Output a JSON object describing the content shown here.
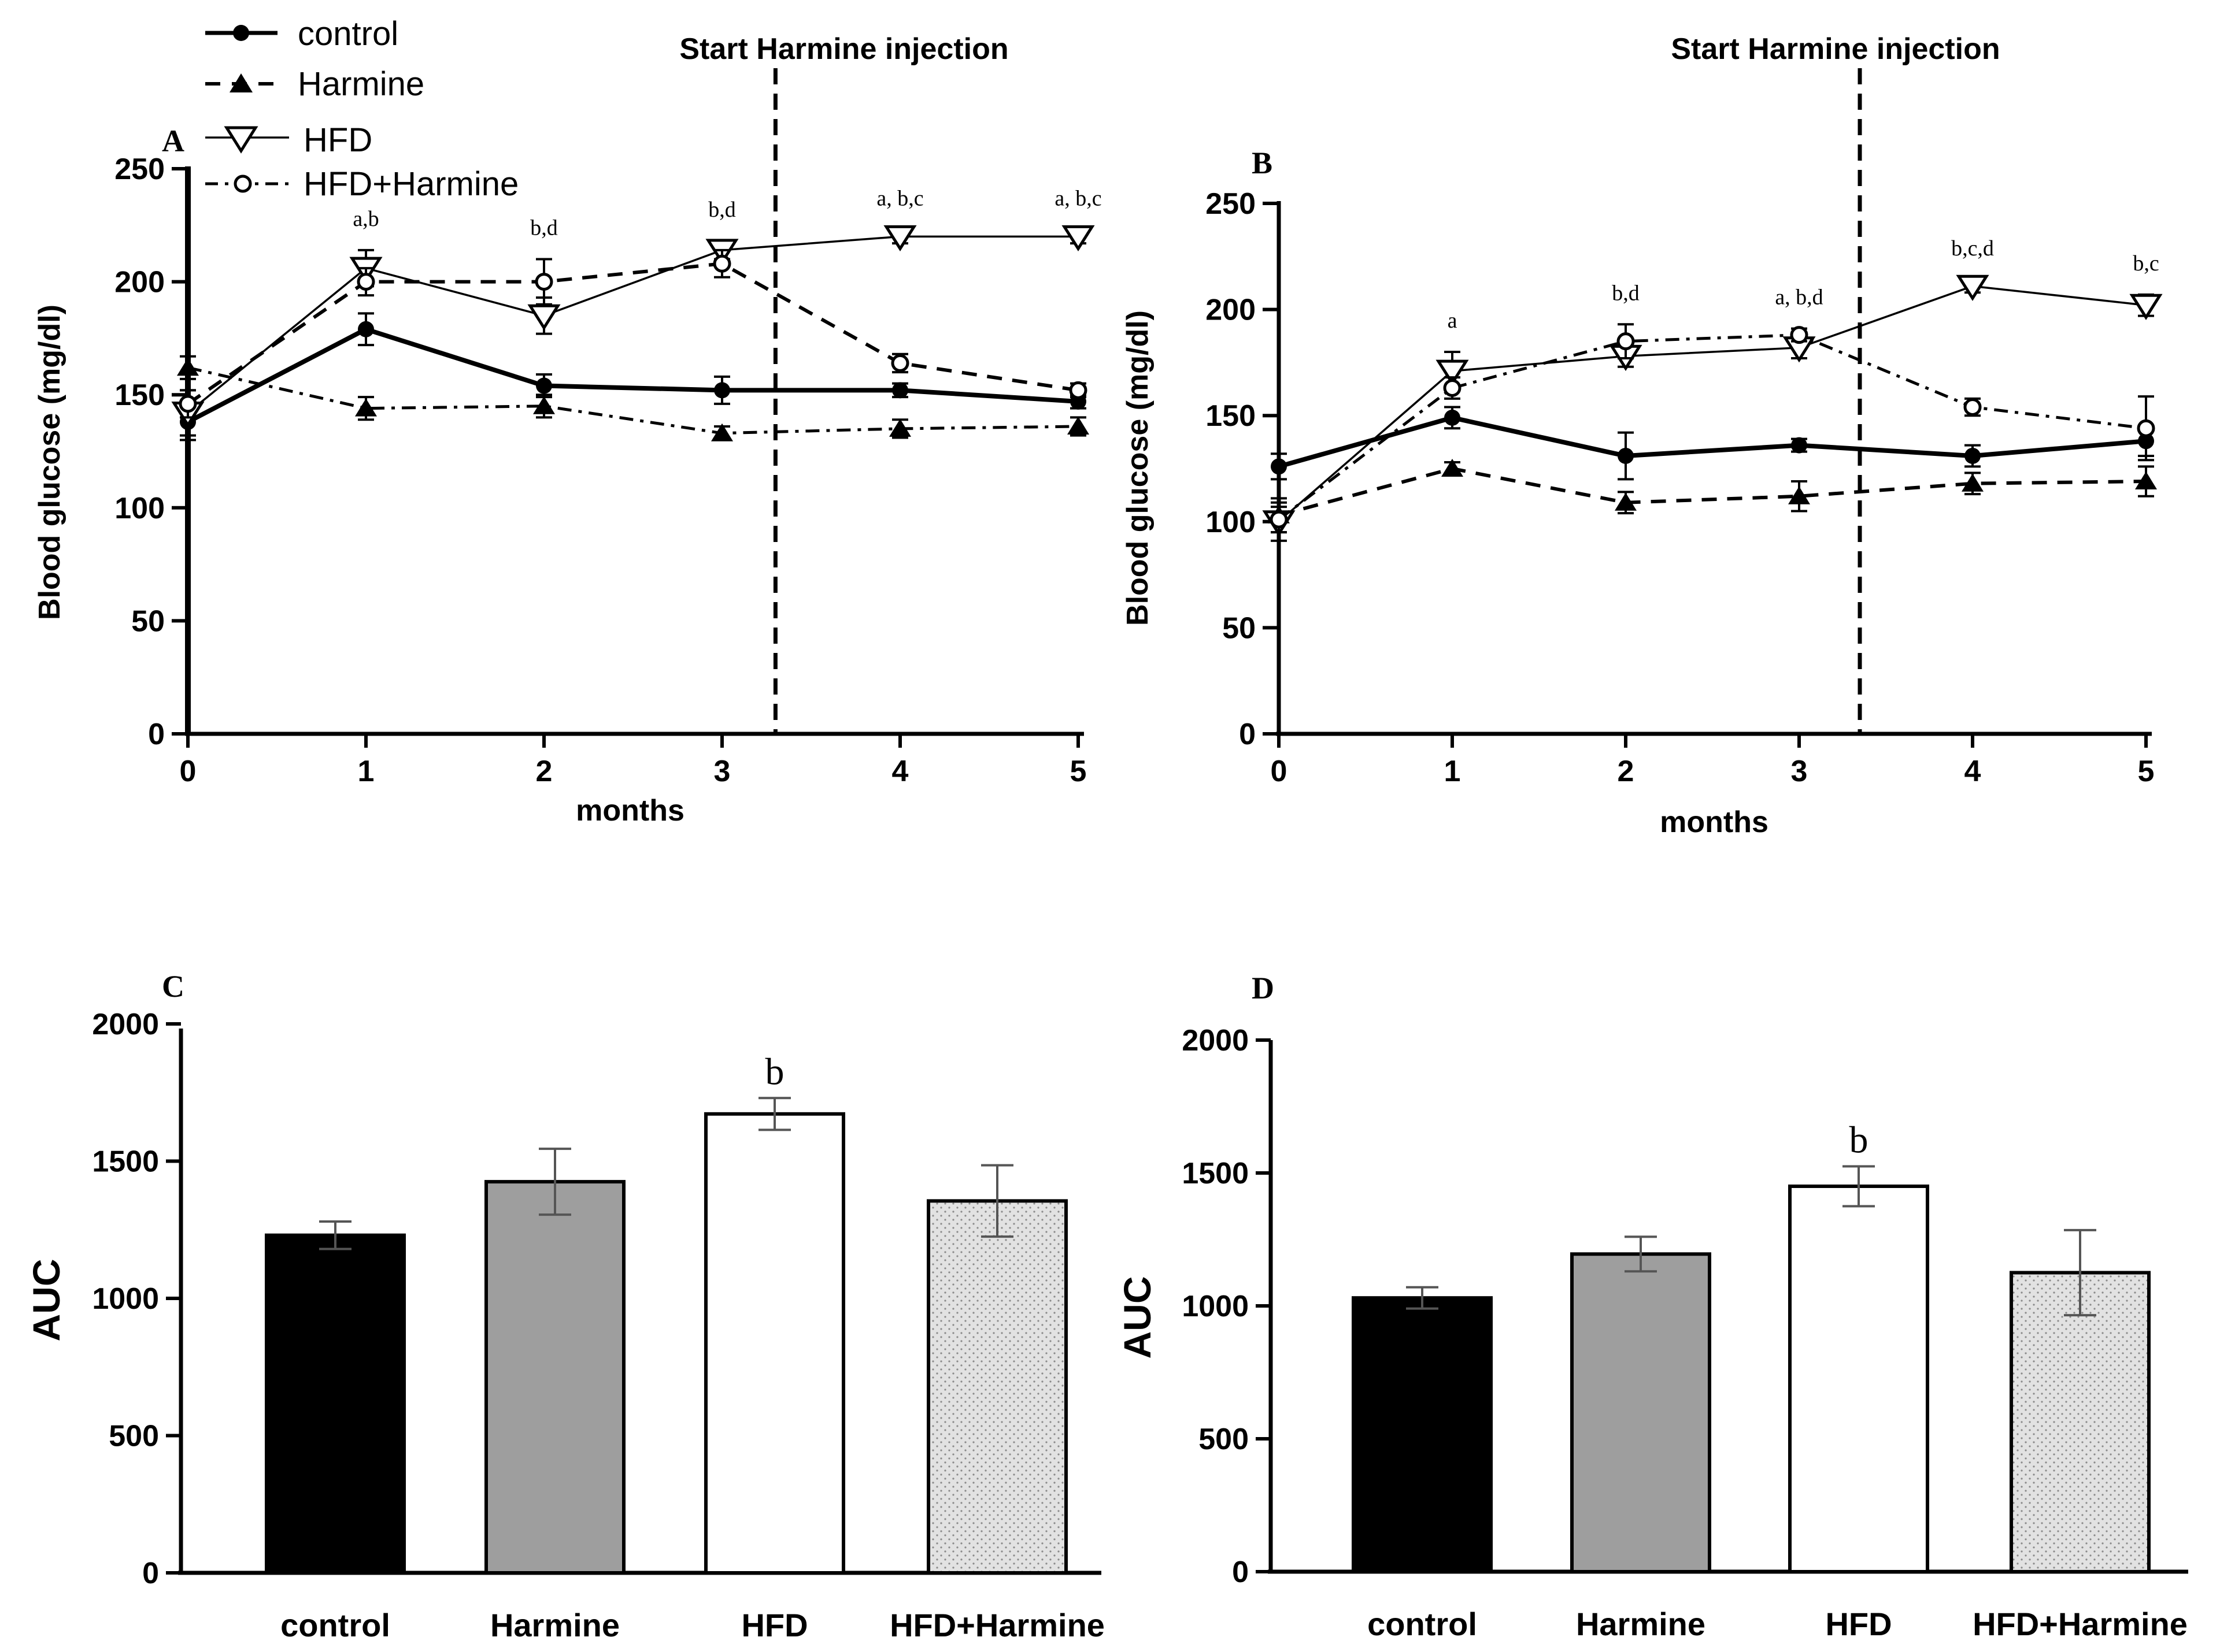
{
  "legend": {
    "items": [
      {
        "name": "control",
        "marker": "circle-filled",
        "line": "solid"
      },
      {
        "name": "Harmine",
        "marker": "triangle-filled",
        "line": "dashed"
      },
      {
        "name": "HFD",
        "marker": "triangle-down-open",
        "line": "solid-thin"
      },
      {
        "name": "HFD+Harmine",
        "marker": "circle-open",
        "line": "dashdot"
      }
    ]
  },
  "colors": {
    "control_bar": "#000000",
    "harmine_bar": "#9e9e9e",
    "hfd_bar": "#ffffff",
    "hfd_harmine_bar": "#dcdcdc"
  },
  "chart_data": [
    {
      "panel": "A",
      "type": "line",
      "xlabel": "months",
      "ylabel": "Blood glucose (mg/dl)",
      "x": [
        0,
        1,
        2,
        3,
        4,
        5
      ],
      "xlim": [
        0,
        5
      ],
      "ylim": [
        0,
        250
      ],
      "yticks": [
        0,
        50,
        100,
        150,
        200,
        250
      ],
      "vline": {
        "x": 3.3,
        "label": "Start Harmine injection"
      },
      "series": [
        {
          "name": "control",
          "values": [
            138,
            179,
            154,
            152,
            152,
            147
          ],
          "err": [
            8,
            7,
            5,
            6,
            3,
            3
          ],
          "marker": "circle-filled",
          "line": "solid"
        },
        {
          "name": "Harmine",
          "values": [
            162,
            144,
            145,
            133,
            135,
            136
          ],
          "err": [
            5,
            5,
            5,
            3,
            4,
            4
          ],
          "marker": "triangle-filled",
          "line": "dashdot"
        },
        {
          "name": "HFD",
          "values": [
            142,
            206,
            185,
            214,
            220,
            220
          ],
          "err": [
            10,
            8,
            8,
            4,
            3,
            3
          ],
          "marker": "triangle-down-open",
          "line": "solid-thin"
        },
        {
          "name": "HFD+Harmine",
          "values": [
            146,
            200,
            200,
            208,
            164,
            152
          ],
          "err": [
            6,
            6,
            10,
            6,
            4,
            3
          ],
          "marker": "circle-open",
          "line": "dashed"
        }
      ],
      "annotations": [
        {
          "x": 1,
          "text": "a,b"
        },
        {
          "x": 2,
          "text": "b,d"
        },
        {
          "x": 3,
          "text": "b,d"
        },
        {
          "x": 4,
          "text": "a, b,c"
        },
        {
          "x": 5,
          "text": "a, b,c"
        }
      ]
    },
    {
      "panel": "B",
      "type": "line",
      "xlabel": "months",
      "ylabel": "Blood glucose (mg/dl)",
      "x": [
        0,
        1,
        2,
        3,
        4,
        5
      ],
      "xlim": [
        0,
        5
      ],
      "ylim": [
        0,
        250
      ],
      "yticks": [
        0,
        50,
        100,
        150,
        200,
        250
      ],
      "vline": {
        "x": 3.35,
        "label": "Start Harmine injection"
      },
      "series": [
        {
          "name": "control",
          "values": [
            126,
            149,
            131,
            136,
            131,
            138
          ],
          "err": [
            6,
            5,
            11,
            3,
            5,
            7
          ],
          "marker": "circle-filled",
          "line": "solid"
        },
        {
          "name": "Harmine",
          "values": [
            103,
            125,
            109,
            112,
            118,
            119
          ],
          "err": [
            8,
            3,
            5,
            7,
            5,
            7
          ],
          "marker": "triangle-filled",
          "line": "dashed"
        },
        {
          "name": "HFD",
          "values": [
            100,
            171,
            178,
            182,
            211,
            202
          ],
          "err": [
            9,
            9,
            5,
            5,
            3,
            5
          ],
          "marker": "triangle-down-open",
          "line": "solid-thin"
        },
        {
          "name": "HFD+Harmine",
          "values": [
            101,
            163,
            185,
            188,
            154,
            144
          ],
          "err": [
            6,
            5,
            8,
            3,
            4,
            15
          ],
          "marker": "circle-open",
          "line": "dashdot"
        }
      ],
      "annotations": [
        {
          "x": 1,
          "text": "a"
        },
        {
          "x": 2,
          "text": "b,d"
        },
        {
          "x": 3,
          "text": "a, b,d"
        },
        {
          "x": 4,
          "text": "b,c,d"
        },
        {
          "x": 5,
          "text": "b,c"
        }
      ]
    },
    {
      "panel": "C",
      "type": "bar",
      "ylabel": "AUC",
      "ylim": [
        0,
        2000
      ],
      "yticks": [
        0,
        500,
        1000,
        1500,
        2000
      ],
      "categories": [
        "control",
        "Harmine",
        "HFD",
        "HFD+Harmine"
      ],
      "values": [
        1230,
        1425,
        1672,
        1355
      ],
      "err": [
        50,
        120,
        58,
        130
      ],
      "annotations": [
        {
          "category": "HFD",
          "text": "b"
        }
      ]
    },
    {
      "panel": "D",
      "type": "bar",
      "ylabel": "AUC",
      "ylim": [
        0,
        2000
      ],
      "yticks": [
        0,
        500,
        1000,
        1500,
        2000
      ],
      "categories": [
        "control",
        "Harmine",
        "HFD",
        "HFD+Harmine"
      ],
      "values": [
        1030,
        1195,
        1450,
        1125
      ],
      "err": [
        40,
        65,
        75,
        160
      ],
      "annotations": [
        {
          "category": "HFD",
          "text": "b"
        }
      ]
    }
  ]
}
